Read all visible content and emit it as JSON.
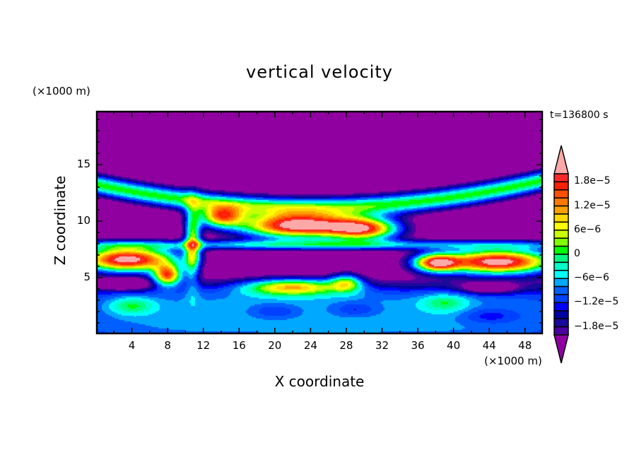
{
  "chart_data": {
    "type": "heatmap",
    "subtype": "filled-contour",
    "title": "vertical velocity",
    "xlabel": "X coordinate",
    "ylabel": "Z coordinate",
    "x_unit": "(×1000 m)",
    "z_unit": "(×1000 m)",
    "time_label": "t=136800 s",
    "xlim": [
      0,
      50
    ],
    "ylim": [
      0,
      19.75
    ],
    "x_ticks": [
      4,
      8,
      12,
      16,
      20,
      24,
      28,
      32,
      36,
      40,
      44,
      48
    ],
    "x_tick_labels": [
      "4",
      "8",
      "12",
      "16",
      "20",
      "24",
      "28",
      "32",
      "36",
      "40",
      "44",
      "48"
    ],
    "y_ticks": [
      5,
      10,
      15
    ],
    "y_tick_labels": [
      "5",
      "10",
      "15"
    ],
    "colorbar": {
      "levels_min": -2e-05,
      "levels_max": 2e-05,
      "level_step": 2e-06,
      "tick_values": [
        1.8e-05,
        1.2e-05,
        6e-06,
        0,
        -6e-06,
        -1.2e-05,
        -1.8e-05
      ],
      "tick_labels": [
        "1.8e−5",
        "1.2e−5",
        "6e−6",
        "0",
        "−6e−6",
        "−1.2e−5",
        "−1.8e−5"
      ],
      "colors_bottom_to_top": [
        "#4a00a0",
        "#1a0a9a",
        "#0000a0",
        "#0000ff",
        "#0040ff",
        "#0060ff",
        "#00a8ff",
        "#00ffff",
        "#00ffc8",
        "#00ff80",
        "#00ff00",
        "#80ff00",
        "#c8ff00",
        "#ffff00",
        "#ffd800",
        "#ffa000",
        "#ff7800",
        "#ff5000",
        "#ff2000",
        "#ff2828"
      ],
      "under_color": "#9000a0",
      "over_color": "#ffa8a8"
    },
    "field_approx": {
      "background_value": -2.5e-05,
      "features": [
        {
          "x": 25,
          "z": 1.6,
          "sx": 40,
          "sz": 2.9,
          "amp": 1.8e-05,
          "p": 4
        },
        {
          "x": 4,
          "z": 2.5,
          "sx": 2.5,
          "sz": 0.8,
          "amp": 9e-06,
          "p": 2
        },
        {
          "x": 39,
          "z": 2.8,
          "sx": 2.5,
          "sz": 0.8,
          "amp": 8e-06,
          "p": 2
        },
        {
          "x": 20,
          "z": 2.0,
          "sx": 2.5,
          "sz": 0.6,
          "amp": -5e-06,
          "p": 2
        },
        {
          "x": 29,
          "z": 2.2,
          "sx": 2.5,
          "sz": 0.6,
          "amp": -5e-06,
          "p": 2
        },
        {
          "x": 44,
          "z": 1.6,
          "sx": 3,
          "sz": 0.7,
          "amp": -5e-06,
          "p": 2
        },
        {
          "x": 3,
          "z": 4.4,
          "sx": 3,
          "sz": 0.5,
          "amp": -1.5e-05,
          "p": 2
        },
        {
          "x": 44,
          "z": 4.1,
          "sx": 3,
          "sz": 0.5,
          "amp": -1.5e-05,
          "p": 2
        },
        {
          "x": 22,
          "z": 4.2,
          "sx": 5.5,
          "sz": 0.75,
          "amp": 2.6e-05,
          "p": 2
        },
        {
          "x": 28,
          "z": 4.6,
          "sx": 1.8,
          "sz": 0.8,
          "amp": 2e-05,
          "p": 2
        },
        {
          "x": 3.5,
          "z": 6.6,
          "sx": 5.5,
          "sz": 1.1,
          "amp": 4.8e-05,
          "p": 2
        },
        {
          "x": 8,
          "z": 5.2,
          "sx": 1.6,
          "sz": 0.9,
          "amp": 3.5e-05,
          "p": 2
        },
        {
          "x": 45,
          "z": 6.4,
          "sx": 6.5,
          "sz": 1.1,
          "amp": 4.8e-05,
          "p": 2
        },
        {
          "x": 38,
          "z": 6.3,
          "sx": 2.5,
          "sz": 0.8,
          "amp": 3.5e-05,
          "p": 2
        },
        {
          "x": 22.5,
          "z": 9.6,
          "sx": 6.5,
          "sz": 1.1,
          "amp": 4.8e-05,
          "p": 2
        },
        {
          "x": 30,
          "z": 9.3,
          "sx": 4,
          "sz": 1.0,
          "amp": 3.6e-05,
          "p": 2
        },
        {
          "x": 14,
          "z": 10.4,
          "sx": 2.5,
          "sz": 0.9,
          "amp": 3.2e-05,
          "p": 2
        },
        {
          "x": 10.8,
          "z": 8,
          "sx": 0.9,
          "sz": 3.2,
          "amp": 2.8e-05,
          "p": 2
        }
      ],
      "upper_band": {
        "amp": 2.6e-05,
        "z_center": 11.2,
        "z_curv": 2.4,
        "x_center": 24,
        "width": 0.9
      },
      "mid_band": {
        "amp": 2e-05,
        "z": 7.9,
        "width": 0.45
      }
    }
  }
}
